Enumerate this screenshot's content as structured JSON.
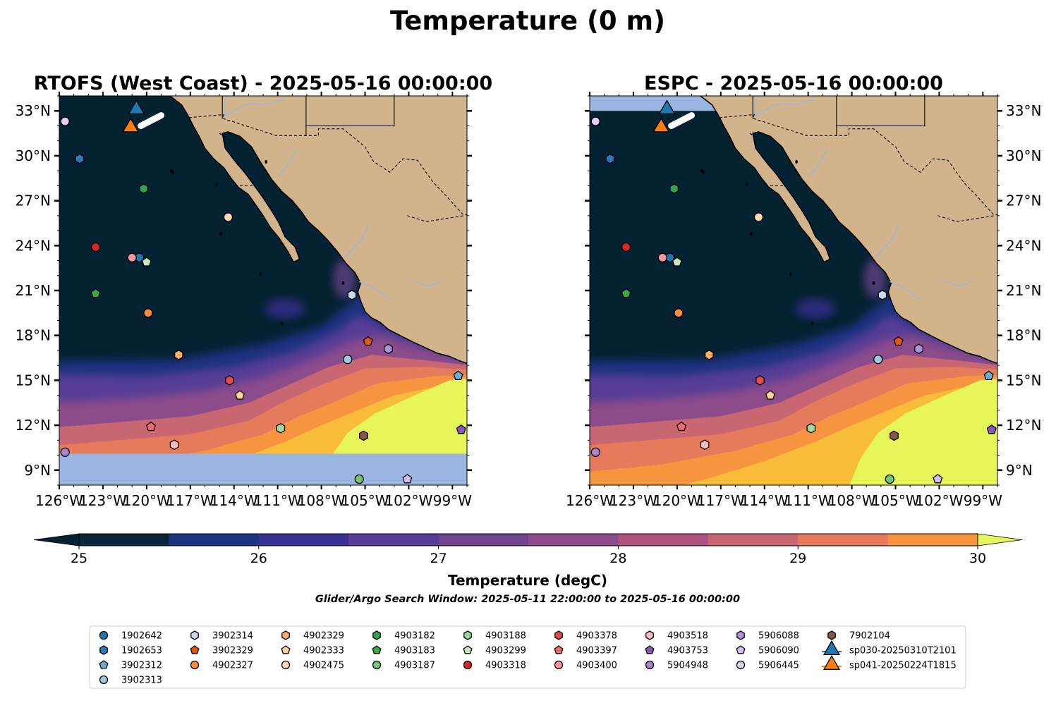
{
  "figure": {
    "suptitle": "Temperature (0 m)",
    "search_window": "Glider/Argo Search Window: 2025-05-11 22:00:00 to 2025-05-16 00:00:00"
  },
  "chart_data": [
    {
      "type": "heatmap",
      "title": "RTOFS (West Coast) - 2025-05-16 00:00:00",
      "xlim": [
        -126,
        -98
      ],
      "ylim": [
        8,
        34
      ],
      "x_ticks": [
        "126°W",
        "123°W",
        "120°W",
        "117°W",
        "114°W",
        "111°W",
        "108°W",
        "105°W",
        "102°W",
        "99°W"
      ],
      "y_ticks": [
        "9°N",
        "12°N",
        "15°N",
        "18°N",
        "21°N",
        "24°N",
        "27°N",
        "30°N",
        "33°N"
      ],
      "y_axis_side": "left",
      "no_data_band_south_of_lat": 10.1
    },
    {
      "type": "heatmap",
      "title": "ESPC - 2025-05-16 00:00:00",
      "xlim": [
        -126,
        -98
      ],
      "ylim": [
        8,
        34
      ],
      "x_ticks": [
        "126°W",
        "123°W",
        "120°W",
        "117°W",
        "114°W",
        "111°W",
        "108°W",
        "105°W",
        "102°W",
        "99°W"
      ],
      "y_ticks": [
        "33°N",
        "30°N",
        "27°N",
        "24°N",
        "21°N",
        "18°N",
        "15°N",
        "12°N",
        "9°N"
      ],
      "y_axis_side": "right"
    }
  ],
  "colorbar": {
    "label": "Temperature (degC)",
    "min": 25,
    "max": 30,
    "step": 0.5,
    "extend": "both",
    "ticks": [
      "25",
      "26",
      "27",
      "28",
      "29",
      "30"
    ],
    "colors": [
      "#0b2539",
      "#1c3380",
      "#3b2f95",
      "#573d96",
      "#6e4591",
      "#8c4b8a",
      "#ad5380",
      "#c86672",
      "#e57a5c",
      "#f6943f",
      "#f8bb3a"
    ],
    "under_color": "#052232",
    "over_color": "#e6f55a"
  },
  "colors": {
    "land": "#d2b48c",
    "missing": "#9ab6e0",
    "coast": "#000000",
    "rivers": "#9ab6e0"
  },
  "markers": [
    {
      "id": "1902642",
      "lon": -120.5,
      "lat": 23.2,
      "color": "#1f77b4",
      "shape": "circle"
    },
    {
      "id": "1902653",
      "lon": -124.6,
      "lat": 29.8,
      "color": "#2b7bba",
      "shape": "hexagon"
    },
    {
      "id": "3902312",
      "lon": -98.6,
      "lat": 15.3,
      "color": "#6baed6",
      "shape": "pentagon"
    },
    {
      "id": "3902313",
      "lon": -106.2,
      "lat": 16.4,
      "color": "#9ecae1",
      "shape": "circle"
    },
    {
      "id": "3902314",
      "lon": -105.9,
      "lat": 20.7,
      "color": "#c6dbef",
      "shape": "hexagon"
    },
    {
      "id": "3902329",
      "lon": -104.8,
      "lat": 17.6,
      "color": "#e6550d",
      "shape": "pentagon"
    },
    {
      "id": "4902327",
      "lon": -119.9,
      "lat": 19.5,
      "color": "#fd8d3c",
      "shape": "circle"
    },
    {
      "id": "4902329",
      "lon": -117.8,
      "lat": 16.7,
      "color": "#fdae6b",
      "shape": "hexagon"
    },
    {
      "id": "4902333",
      "lon": -113.6,
      "lat": 14.0,
      "color": "#fdd0a2",
      "shape": "pentagon"
    },
    {
      "id": "4902475",
      "lon": -114.4,
      "lat": 25.9,
      "color": "#fdd9b5",
      "shape": "circle"
    },
    {
      "id": "4903182",
      "lon": -120.2,
      "lat": 27.8,
      "color": "#31a354",
      "shape": "hexagon"
    },
    {
      "id": "4903183",
      "lon": -123.5,
      "lat": 20.8,
      "color": "#3aa845",
      "shape": "pentagon"
    },
    {
      "id": "4903187",
      "lon": -105.4,
      "lat": 8.4,
      "color": "#74c476",
      "shape": "circle"
    },
    {
      "id": "4903188",
      "lon": -110.8,
      "lat": 11.8,
      "color": "#a1d99b",
      "shape": "hexagon"
    },
    {
      "id": "4903299",
      "lon": -120.0,
      "lat": 22.9,
      "color": "#c7e9c0",
      "shape": "pentagon"
    },
    {
      "id": "4903318",
      "lon": -123.5,
      "lat": 23.9,
      "color": "#d62728",
      "shape": "circle"
    },
    {
      "id": "4903378",
      "lon": -114.3,
      "lat": 15.0,
      "color": "#e34a4a",
      "shape": "hexagon"
    },
    {
      "id": "4903397",
      "lon": -119.7,
      "lat": 11.9,
      "color": "#ee6b6b",
      "shape": "pentagon"
    },
    {
      "id": "4903400",
      "lon": -121.0,
      "lat": 23.2,
      "color": "#ff9896",
      "shape": "circle"
    },
    {
      "id": "4903518",
      "lon": -118.1,
      "lat": 10.7,
      "color": "#ffbcbc",
      "shape": "hexagon"
    },
    {
      "id": "4903753",
      "lon": -98.4,
      "lat": 11.7,
      "color": "#8b57b5",
      "shape": "pentagon"
    },
    {
      "id": "5904948",
      "lon": -125.6,
      "lat": 10.2,
      "color": "#a983d1",
      "shape": "circle"
    },
    {
      "id": "5906088",
      "lon": -103.4,
      "lat": 17.1,
      "color": "#b190de",
      "shape": "hexagon"
    },
    {
      "id": "5906090",
      "lon": -102.1,
      "lat": 8.4,
      "color": "#d4bff0",
      "shape": "pentagon"
    },
    {
      "id": "5906445",
      "lon": -125.6,
      "lat": 32.3,
      "color": "#e3ccf5",
      "shape": "circle"
    },
    {
      "id": "7902104",
      "lon": -105.1,
      "lat": 11.3,
      "color": "#8c564b",
      "shape": "hexagon"
    },
    {
      "id": "sp030-20250310T2101",
      "lon": -120.7,
      "lat": 33.1,
      "color": "#1f77b4",
      "shape": "triangle"
    },
    {
      "id": "sp041-20250224T1815",
      "lon": -121.1,
      "lat": 31.9,
      "color": "#ff7f0e",
      "shape": "triangle"
    }
  ]
}
